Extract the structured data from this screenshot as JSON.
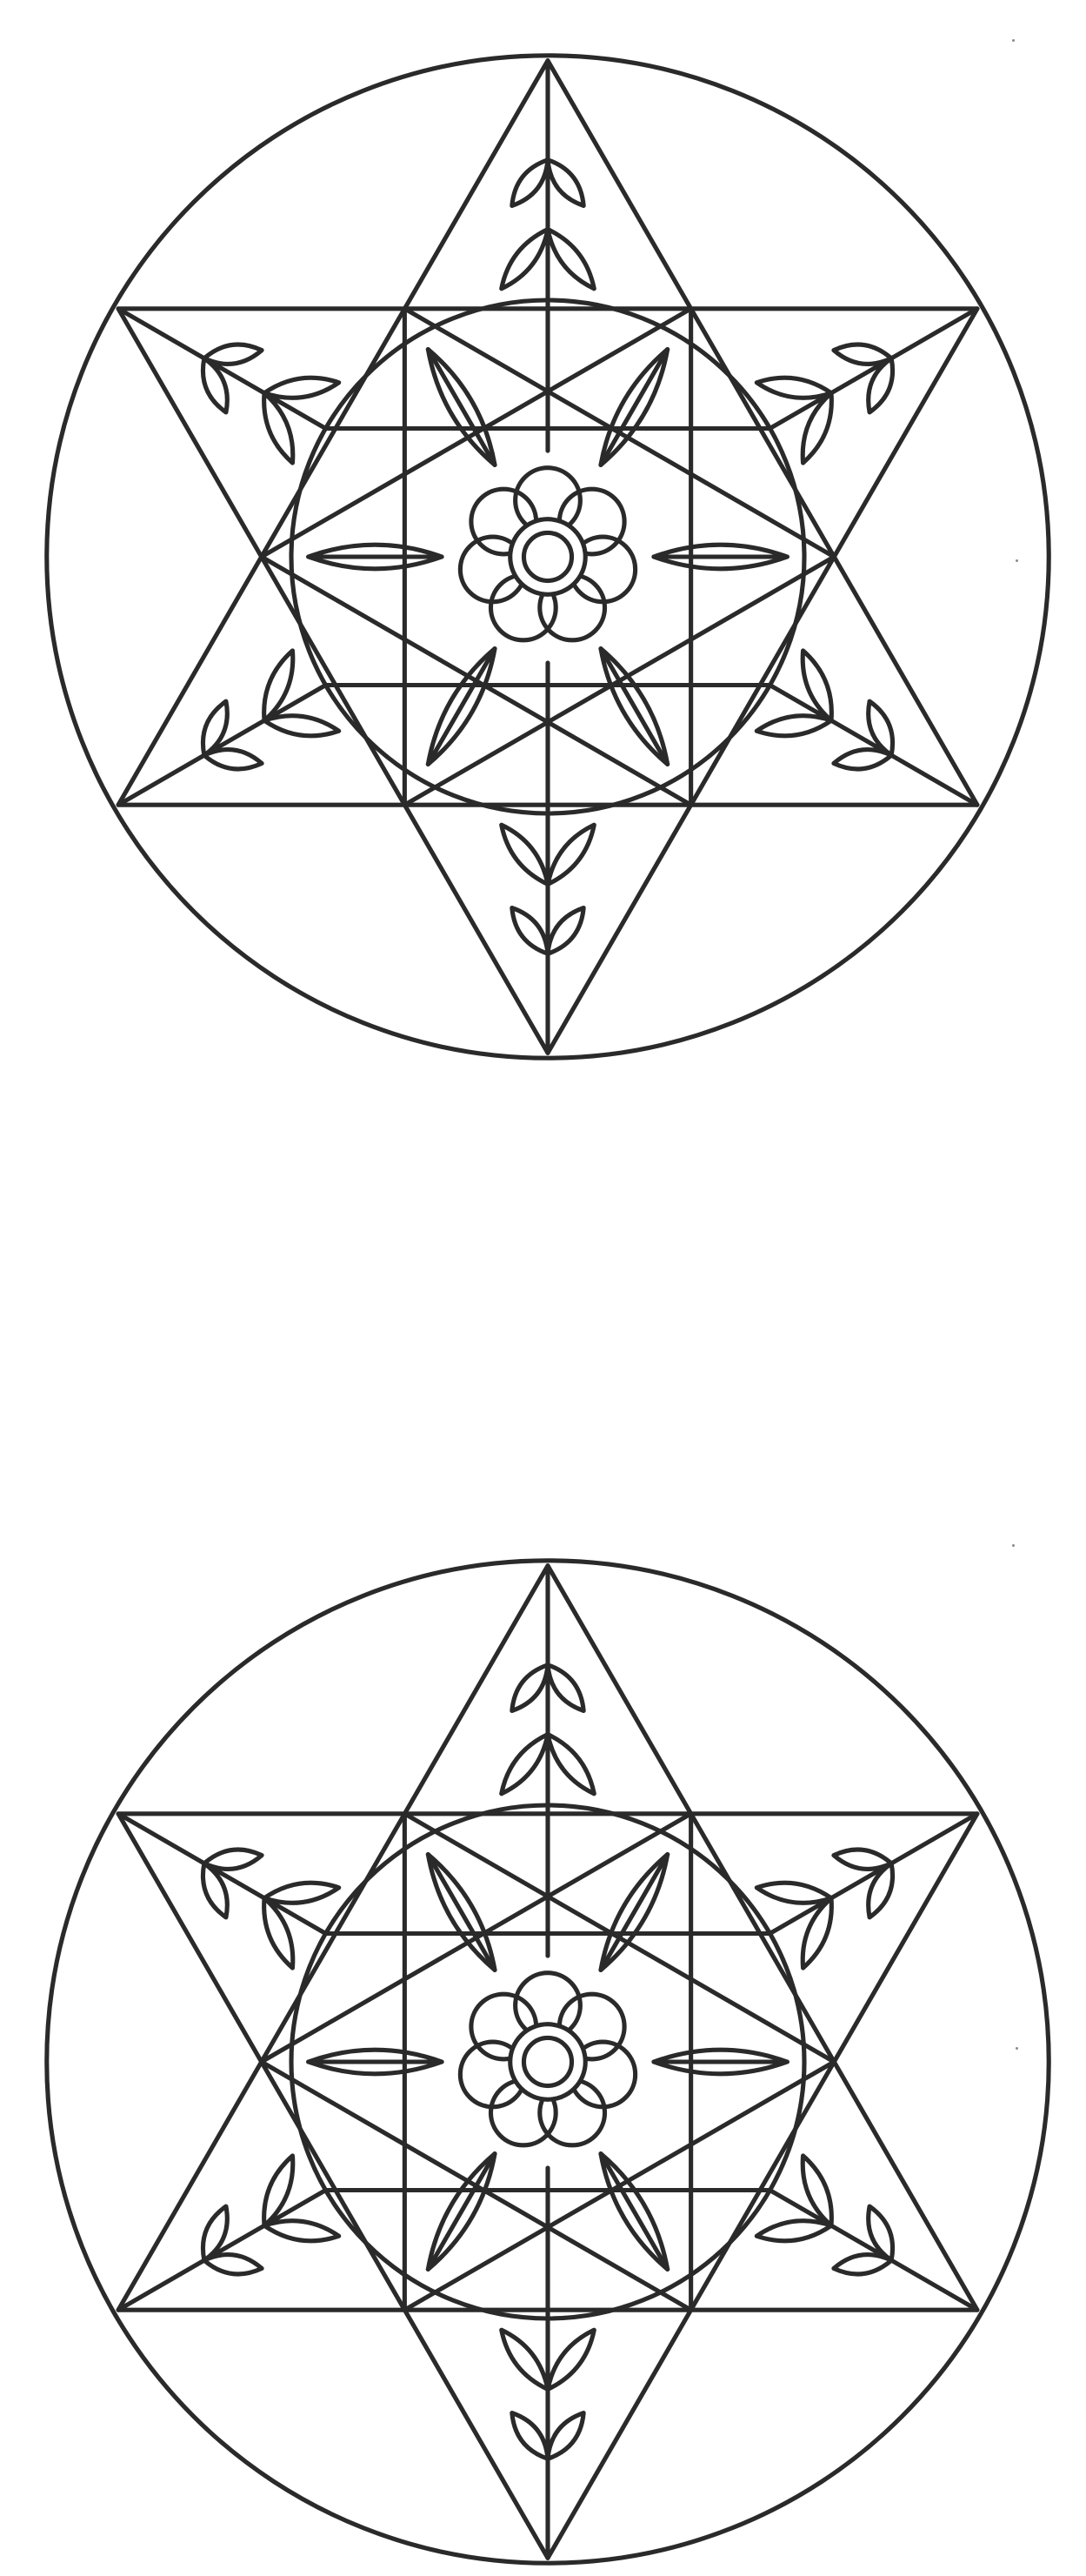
{
  "page": {
    "background": "#ffffff",
    "ink": "#2a2a2a"
  },
  "mandalas": [
    {
      "id": "top",
      "motif": "six-pointed-star-flower"
    },
    {
      "id": "bottom",
      "motif": "six-pointed-star-flower"
    }
  ],
  "icons": {
    "center": "flower-icon",
    "petals": "leaf-icon"
  }
}
